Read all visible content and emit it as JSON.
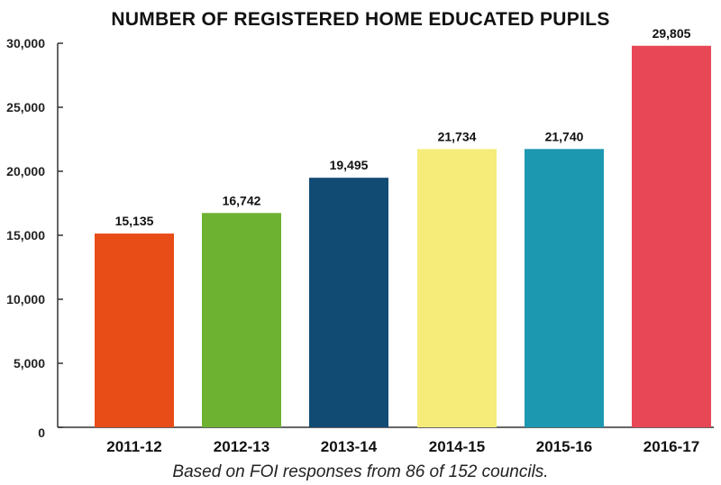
{
  "chart_data": {
    "type": "bar",
    "title": "NUMBER OF REGISTERED HOME EDUCATED PUPILS",
    "xlabel": "",
    "ylabel": "",
    "categories": [
      "2011-12",
      "2012-13",
      "2013-14",
      "2014-15",
      "2015-16",
      "2016-17"
    ],
    "values": [
      15135,
      16742,
      19495,
      21734,
      21740,
      29805
    ],
    "value_labels": [
      "15,135",
      "16,742",
      "19,495",
      "21,734",
      "21,740",
      "29,805"
    ],
    "colors": [
      "#e84c17",
      "#6db231",
      "#114b74",
      "#f5ec7a",
      "#1d98b1",
      "#e84756"
    ],
    "ylim": [
      0,
      30000
    ],
    "yticks": [
      0,
      5000,
      10000,
      15000,
      20000,
      25000,
      30000
    ],
    "ytick_labels": [
      "0",
      "5,000",
      "10,000",
      "15,000",
      "20,000",
      "25,000",
      "30,000"
    ],
    "grid": false,
    "legend": "none",
    "footnote": "Based on FOI responses from 86 of 152 councils."
  }
}
